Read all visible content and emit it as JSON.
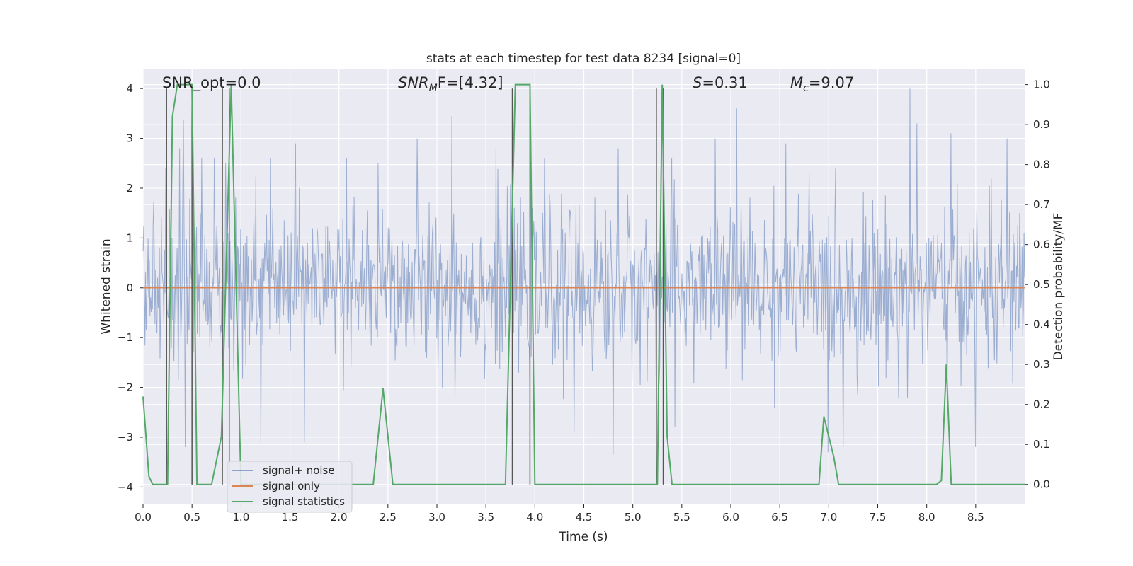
{
  "chart_data": {
    "type": "line",
    "title": "stats at each timestep for test data 8234 [signal=0]",
    "xlabel": "Time (s)",
    "ylabel_left": "Whitened strain",
    "ylabel_right": "Detection probability/MF",
    "xlim": [
      0.0,
      9.0
    ],
    "ylim_left": [
      -4.35,
      4.4
    ],
    "ylim_right": [
      -0.05,
      1.04
    ],
    "x_ticks": [
      "0.0",
      "0.5",
      "1.0",
      "1.5",
      "2.0",
      "2.5",
      "3.0",
      "3.5",
      "4.0",
      "4.5",
      "5.0",
      "5.5",
      "6.0",
      "6.5",
      "7.0",
      "7.5",
      "8.0",
      "8.5"
    ],
    "y_ticks_left": [
      "−4",
      "−3",
      "−2",
      "−1",
      "0",
      "1",
      "2",
      "3",
      "4"
    ],
    "y_ticks_right": [
      "0.0",
      "0.1",
      "0.2",
      "0.3",
      "0.4",
      "0.5",
      "0.6",
      "0.7",
      "0.8",
      "0.9",
      "1.0"
    ],
    "grid": true,
    "legend_position": "lower-left",
    "annotations": {
      "snr_opt": "SNR_opt=0.0",
      "snr_mf_sym": "SNR",
      "snr_mf_sub": "M",
      "snr_mf_rest": "F=[4.32]",
      "s_sym": "S",
      "s_rest": "=0.31",
      "mc_sym": "M",
      "mc_sub": "c",
      "mc_rest": "=9.07"
    },
    "series": [
      {
        "name": "signal+ noise",
        "color": "#4c72b0",
        "noise_sigma": 0.8,
        "peaks": [
          [
            0.23,
            2.4
          ],
          [
            0.37,
            2.8
          ],
          [
            0.41,
            3.37
          ],
          [
            0.6,
            2.6
          ],
          [
            0.73,
            2.6
          ],
          [
            0.84,
            2.5
          ],
          [
            1.3,
            2.6
          ],
          [
            1.56,
            2.9
          ],
          [
            2.08,
            2.6
          ],
          [
            2.4,
            2.5
          ],
          [
            2.8,
            3.0
          ],
          [
            3.15,
            3.45
          ],
          [
            3.6,
            2.8
          ],
          [
            4.1,
            2.6
          ],
          [
            4.85,
            2.8
          ],
          [
            5.4,
            2.6
          ],
          [
            5.84,
            3.0
          ],
          [
            6.06,
            3.6
          ],
          [
            6.56,
            2.9
          ],
          [
            6.8,
            2.3
          ],
          [
            7.9,
            3.3
          ],
          [
            8.25,
            3.1
          ],
          [
            8.82,
            3.0
          ],
          [
            7.83,
            4.0
          ],
          [
            0.43,
            -3.2
          ],
          [
            1.2,
            -3.1
          ],
          [
            1.65,
            -3.1
          ],
          [
            4.4,
            -2.9
          ],
          [
            4.8,
            -3.35
          ],
          [
            5.43,
            -2.8
          ],
          [
            6.99,
            -3.3
          ],
          [
            7.15,
            -3.2
          ],
          [
            8.5,
            -3.2
          ]
        ]
      },
      {
        "name": "signal only",
        "color": "#dd8452",
        "values": 0.0
      },
      {
        "name": "signal statistics",
        "color": "#55a868",
        "x": [
          0.0,
          0.06,
          0.1,
          0.2,
          0.25,
          0.3,
          0.35,
          0.4,
          0.5,
          0.55,
          0.6,
          0.7,
          0.8,
          0.9,
          1.0,
          1.1,
          1.5,
          2.0,
          2.35,
          2.45,
          2.55,
          2.7,
          3.0,
          3.5,
          3.7,
          3.8,
          3.85,
          3.9,
          3.95,
          4.0,
          4.05,
          4.5,
          4.6,
          4.7,
          5.0,
          5.2,
          5.25,
          5.3,
          5.35,
          5.4,
          5.45,
          5.6,
          6.0,
          6.2,
          6.4,
          6.9,
          6.95,
          7.05,
          7.1,
          7.5,
          8.1,
          8.15,
          8.2,
          8.25,
          8.3,
          8.6,
          9.0
        ],
        "y": [
          0.22,
          0.02,
          0.0,
          0.0,
          0.0,
          0.92,
          1.0,
          1.0,
          1.0,
          0.0,
          0.0,
          0.0,
          0.12,
          1.0,
          0.0,
          0.0,
          0.0,
          0.0,
          0.0,
          0.24,
          0.0,
          0.0,
          0.0,
          0.0,
          0.0,
          1.0,
          1.0,
          1.0,
          1.0,
          0.0,
          0.0,
          0.0,
          0.0,
          0.0,
          0.0,
          0.0,
          0.0,
          1.0,
          0.12,
          0.0,
          0.0,
          0.0,
          0.0,
          0.0,
          0.0,
          0.0,
          0.17,
          0.07,
          0.0,
          0.0,
          0.0,
          0.01,
          0.3,
          0.0,
          0.0,
          0.0,
          0.0
        ]
      }
    ],
    "vlines": [
      0.24,
      0.5,
      0.81,
      0.88,
      3.77,
      3.95,
      5.24,
      5.31
    ],
    "vline_color": "#555555"
  }
}
